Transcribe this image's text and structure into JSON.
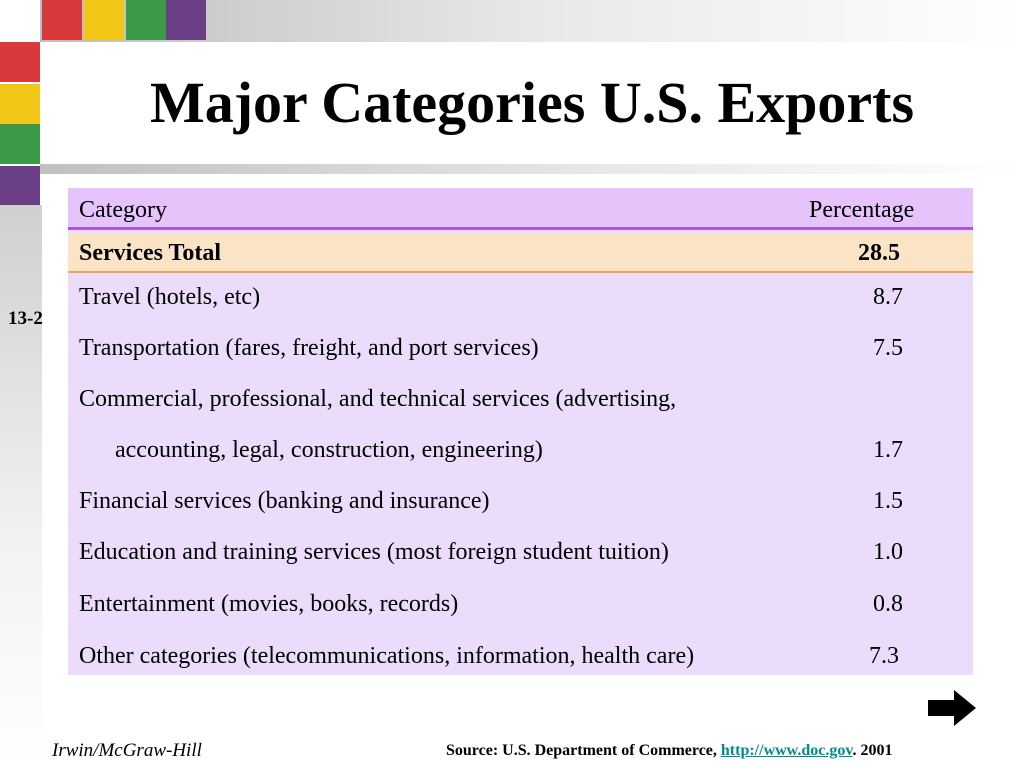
{
  "title": "Major Categories U.S. Exports",
  "slide_number": "13-2",
  "table": {
    "header": {
      "category": "Category",
      "percentage": "Percentage"
    },
    "services_total": {
      "label": "Services Total",
      "value": "28.5"
    },
    "rows": [
      {
        "label": "Travel (hotels, etc)",
        "value": "8.7"
      },
      {
        "label": "Transportation (fares, freight, and port services)",
        "value": "7.5"
      },
      {
        "label": "Commercial, professional, and technical services (advertising,",
        "label_cont": "accounting, legal, construction, engineering)",
        "value": "1.7"
      },
      {
        "label": "Financial services (banking and insurance)",
        "value": "1.5"
      },
      {
        "label": "Education and training services (most foreign student tuition)",
        "value": "1.0"
      },
      {
        "label": "Entertainment (movies, books, records)",
        "value": "0.8"
      },
      {
        "label": "Other categories (telecommunications, information, health care)",
        "value": "7.3"
      }
    ]
  },
  "footer": {
    "publisher": "Irwin/McGraw-Hill",
    "source_prefix": "Source:  U.S. Department of Commerce, ",
    "source_link": "http://www.doc.gov",
    "source_suffix": ".  2001"
  },
  "icons": {
    "next": "right-arrow-icon"
  },
  "colors": {
    "header_bg": "#e6c3fb",
    "table_bg": "#ecdcfb",
    "total_bg": "#fbe4c6",
    "link": "#008c8c"
  }
}
